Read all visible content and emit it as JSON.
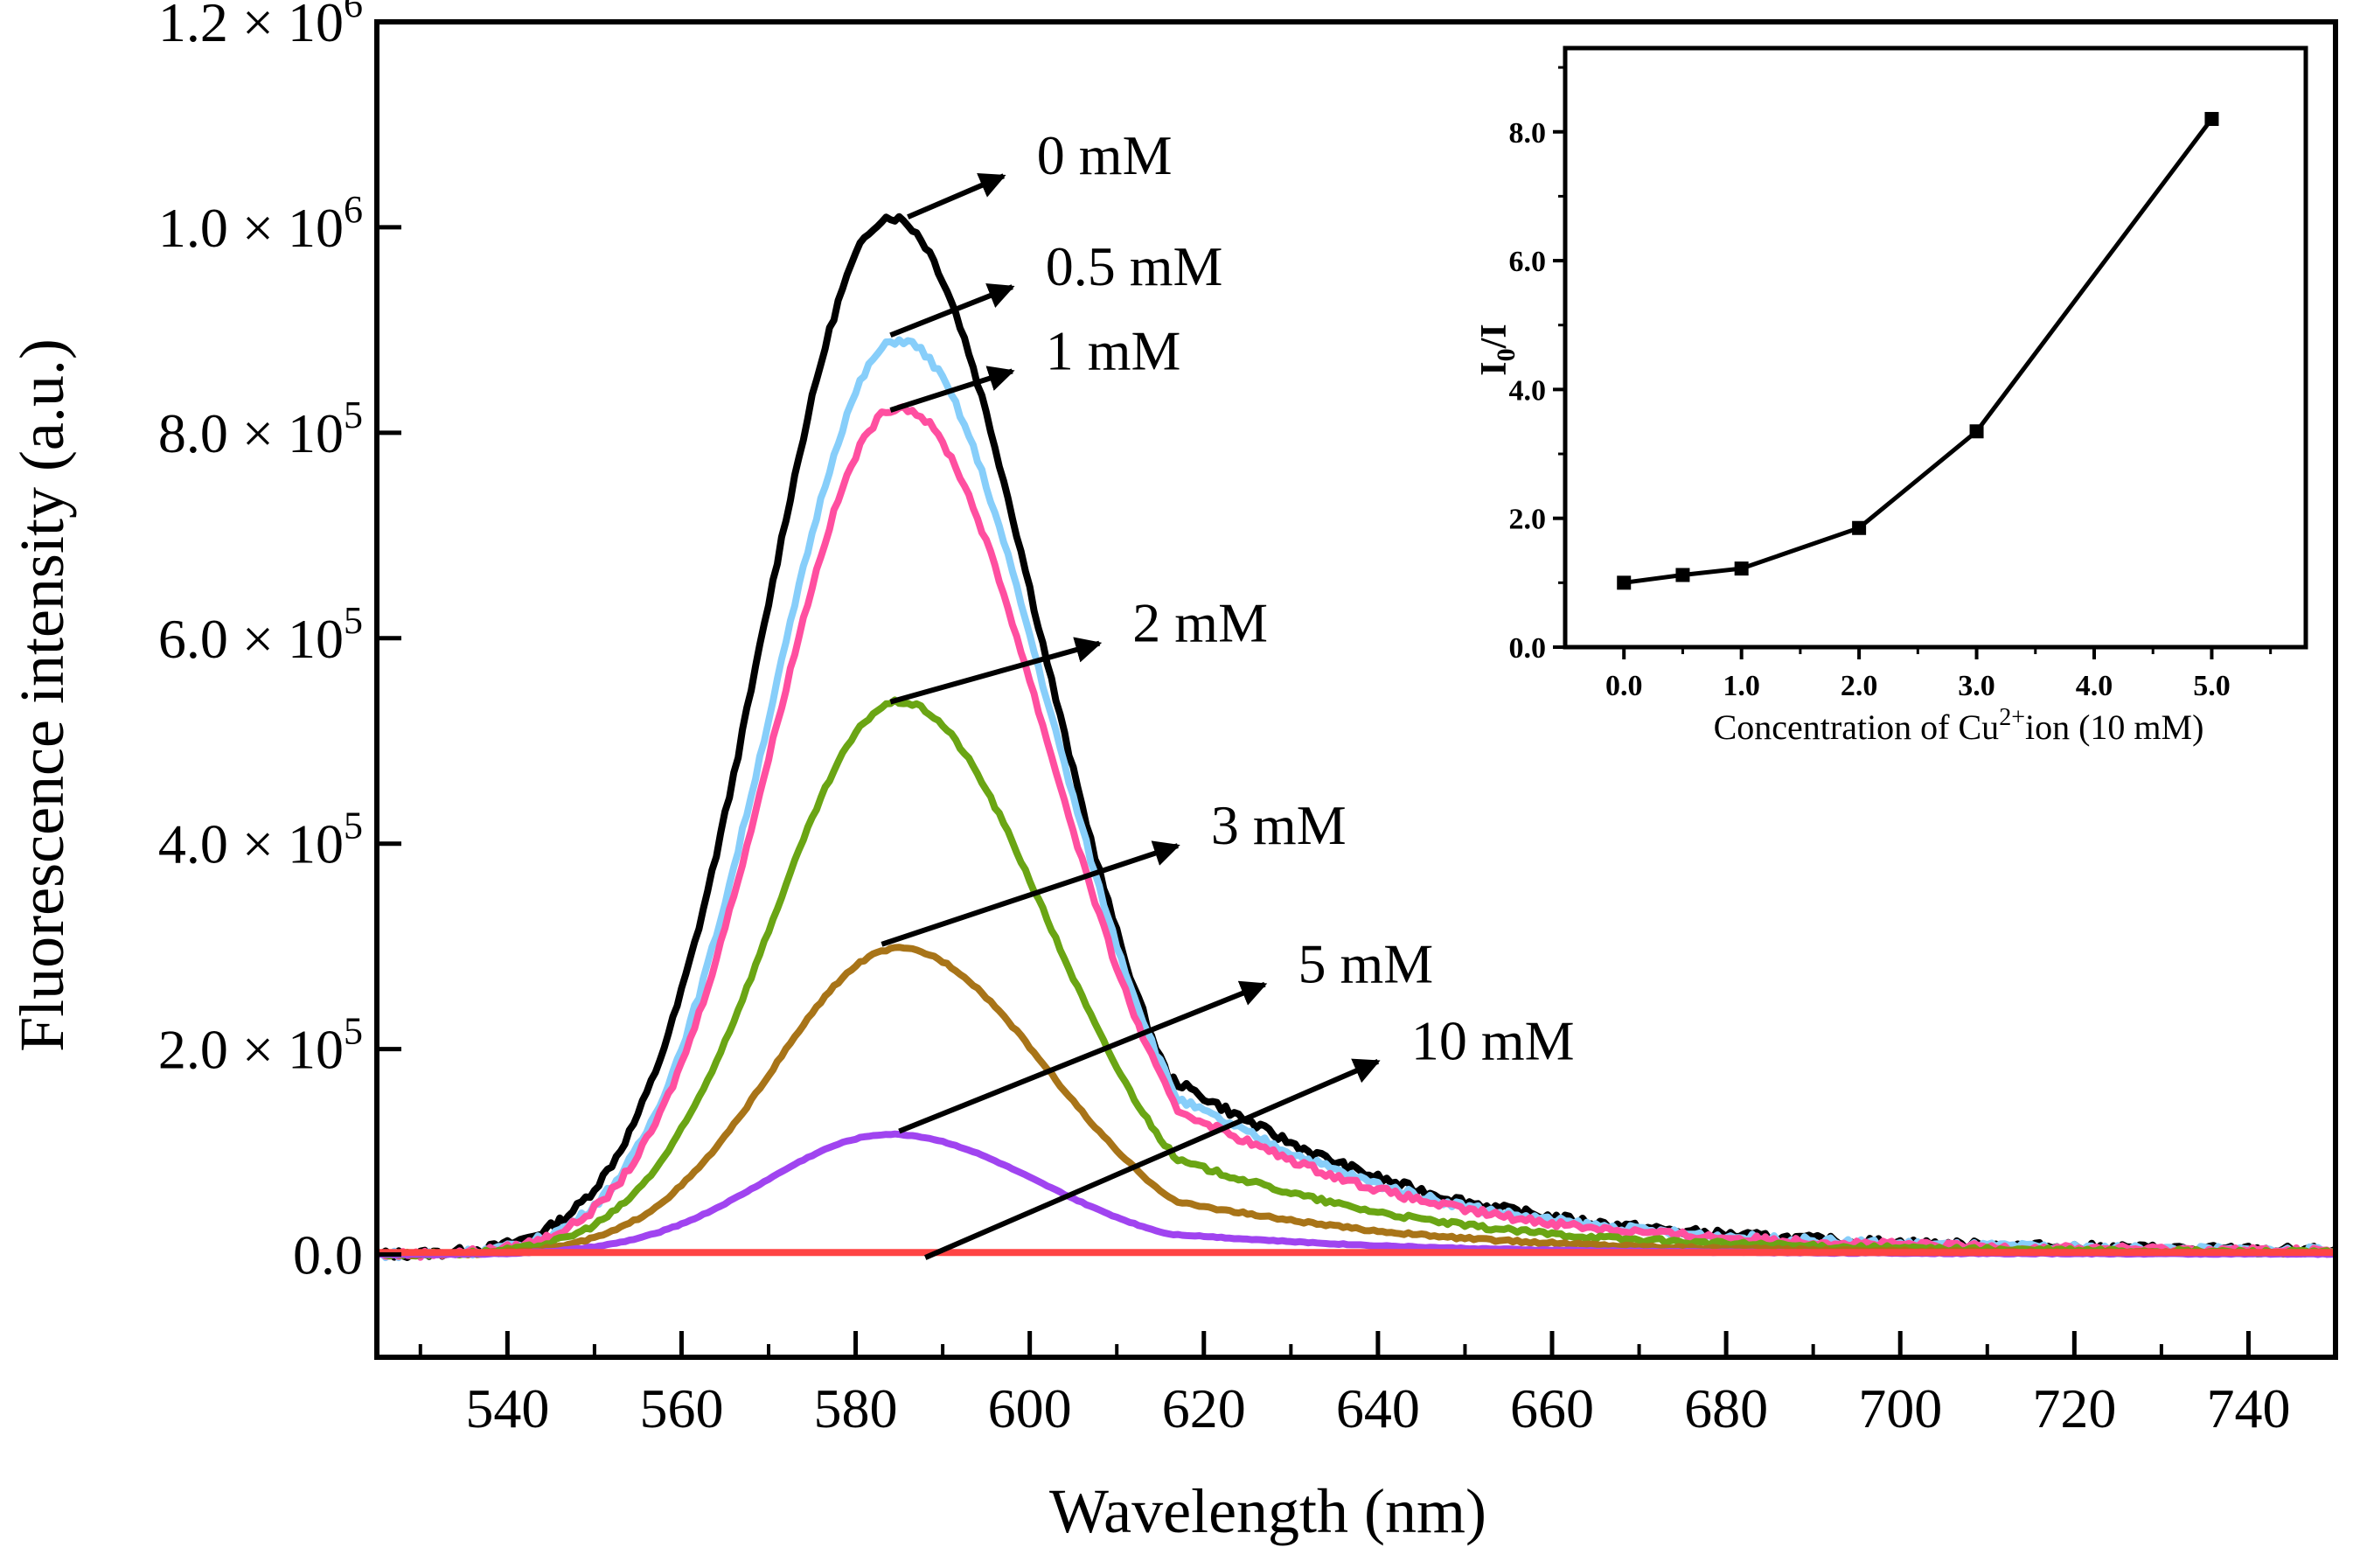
{
  "chart_data": [
    {
      "type": "line",
      "xlabel": "Wavelength (nm)",
      "ylabel": "Fluorescence intensity (a.u.)",
      "xlim": [
        525,
        750
      ],
      "ylim": [
        -100000,
        1200000
      ],
      "x_ticks": [
        540,
        560,
        580,
        600,
        620,
        640,
        660,
        680,
        700,
        720,
        740
      ],
      "y_ticks": [
        {
          "value": 0,
          "base": "0.0",
          "exp": ""
        },
        {
          "value": 200000,
          "base": "2.0 × 10",
          "exp": "5"
        },
        {
          "value": 400000,
          "base": "4.0 × 10",
          "exp": "5"
        },
        {
          "value": 600000,
          "base": "6.0 × 10",
          "exp": "5"
        },
        {
          "value": 800000,
          "base": "8.0 × 10",
          "exp": "5"
        },
        {
          "value": 1000000,
          "base": "1.0 × 10",
          "exp": "6"
        },
        {
          "value": 1200000,
          "base": "1.2 × 10",
          "exp": "6"
        }
      ],
      "series": [
        {
          "name": "0 mM",
          "color": "#000000",
          "peak_x": 584,
          "peak_y": 1010000
        },
        {
          "name": "0.5 mM",
          "color": "#87cefa",
          "peak_x": 585,
          "peak_y": 890000
        },
        {
          "name": "1 mM",
          "color": "#ff4fa0",
          "peak_x": 585,
          "peak_y": 825000
        },
        {
          "name": "2 mM",
          "color": "#6aa514",
          "peak_x": 585,
          "peak_y": 538000
        },
        {
          "name": "3 mM",
          "color": "#a87418",
          "peak_x": 585,
          "peak_y": 298000
        },
        {
          "name": "5 mM",
          "color": "#a044f0",
          "peak_x": 584,
          "peak_y": 117000
        },
        {
          "name": "10 mM",
          "color": "#ff4444",
          "peak_x": 585,
          "peak_y": 2000
        }
      ],
      "annotations": [
        {
          "label": "0 mM",
          "from": [
            586,
            1010000
          ],
          "to": [
            597,
            1050000
          ]
        },
        {
          "label": "0.5 mM",
          "from": [
            584,
            895000
          ],
          "to": [
            598,
            942000
          ]
        },
        {
          "label": "1 mM",
          "from": [
            584,
            822000
          ],
          "to": [
            598,
            860000
          ]
        },
        {
          "label": "2 mM",
          "from": [
            584,
            538000
          ],
          "to": [
            608,
            595000
          ]
        },
        {
          "label": "3 mM",
          "from": [
            583,
            302000
          ],
          "to": [
            617,
            398000
          ]
        },
        {
          "label": "5 mM",
          "from": [
            585,
            120000
          ],
          "to": [
            627,
            263000
          ]
        },
        {
          "label": "10 mM",
          "from": [
            588,
            -3000
          ],
          "to": [
            640,
            188000
          ]
        }
      ]
    },
    {
      "type": "line",
      "xlabel": "Concentration of Cu",
      "xlabel_sup": "2+",
      "xlabel_rest": "ion (10 mM)",
      "ylabel": "I",
      "ylabel_sub": "0",
      "ylabel_rest": "/I",
      "xlim": [
        -0.5,
        5.8
      ],
      "ylim": [
        0,
        9.3
      ],
      "x_ticks": [
        0,
        1,
        2,
        3,
        4,
        5
      ],
      "x_tick_labels": [
        "0.0",
        "1.0",
        "2.0",
        "3.0",
        "4.0",
        "5.0"
      ],
      "y_ticks": [
        0,
        2,
        4,
        6,
        8
      ],
      "y_tick_labels": [
        "0.0",
        "2.0",
        "4.0",
        "6.0",
        "8.0"
      ],
      "x": [
        0,
        0.5,
        1,
        2,
        3,
        5
      ],
      "y": [
        1.0,
        1.12,
        1.22,
        1.85,
        3.35,
        8.2
      ]
    }
  ]
}
